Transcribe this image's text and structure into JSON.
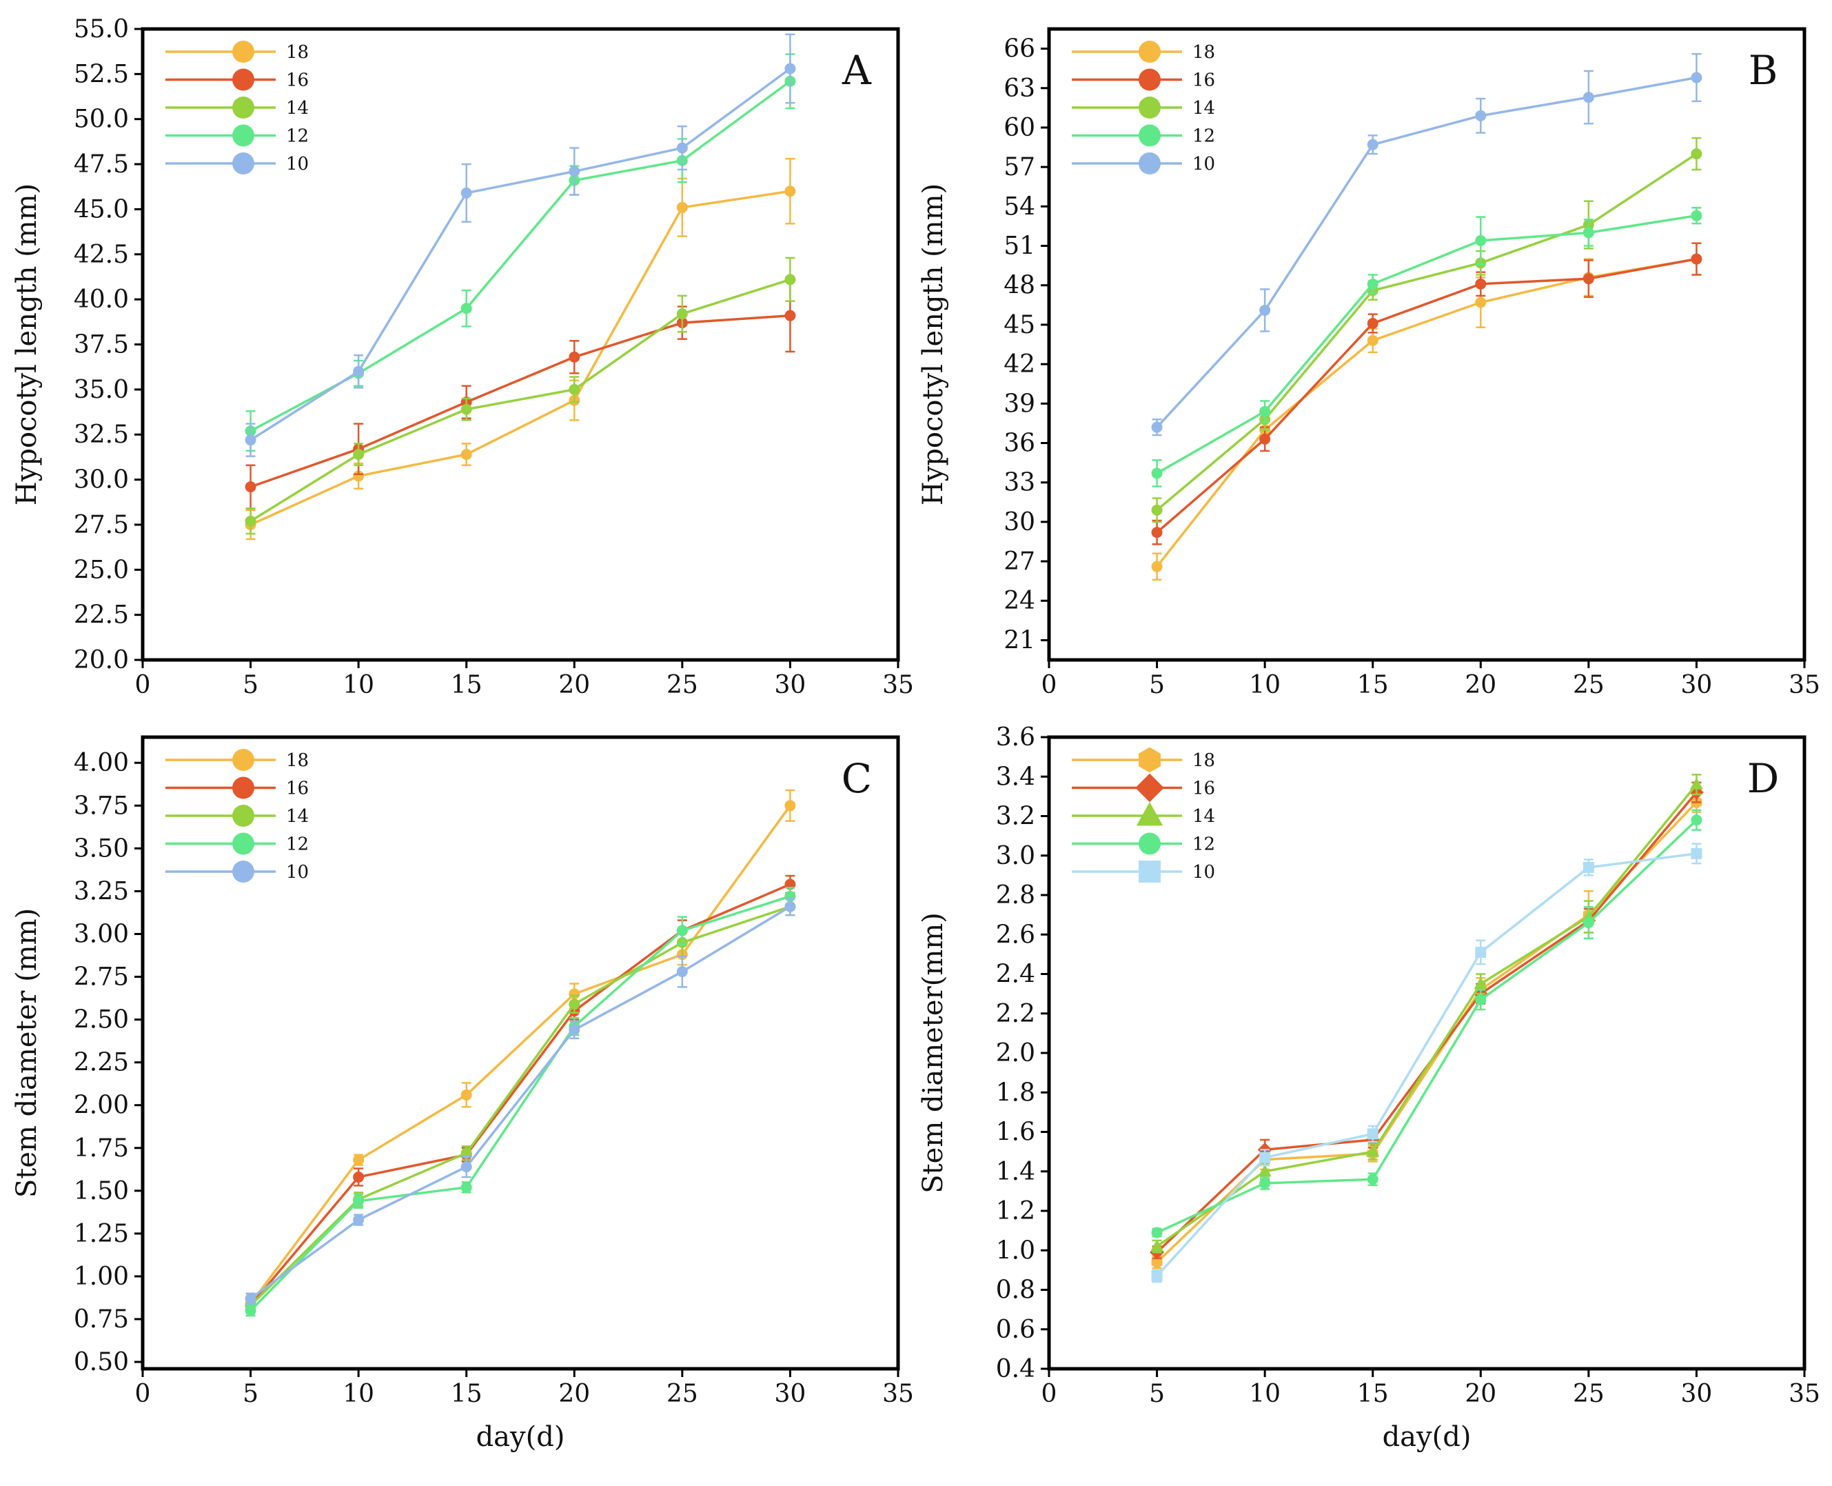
{
  "figure": {
    "xlabel": "day(d)"
  },
  "colors": {
    "18": "#F5B942",
    "16": "#E2572B",
    "14": "#96D13E",
    "12": "#5FE889",
    "10": "#93B7E8",
    "10_d": "#AEDCF5",
    "axis": "#000000"
  },
  "chart_data": [
    {
      "panel": "A",
      "type": "line",
      "title": "",
      "xlabel": "day(d)",
      "ylabel": "Hypocotyl length (mm)",
      "xlim": [
        0,
        35
      ],
      "ylim": [
        20,
        55
      ],
      "xticks": [
        0,
        5,
        10,
        15,
        20,
        25,
        30,
        35
      ],
      "yticks": [
        20.0,
        22.5,
        25.0,
        27.5,
        30.0,
        32.5,
        35.0,
        37.5,
        40.0,
        42.5,
        45.0,
        47.5,
        50.0,
        52.5,
        55.0
      ],
      "ytick_labels": [
        "20.0",
        "22.5",
        "25.0",
        "27.5",
        "30.0",
        "32.5",
        "35.0",
        "37.5",
        "40.0",
        "42.5",
        "45.0",
        "47.5",
        "50.0",
        "52.5",
        "55.0"
      ],
      "xtick_labels": [
        "0",
        "5",
        "10",
        "15",
        "20",
        "25",
        "30",
        "35"
      ],
      "legend_location": "top-left",
      "x": [
        5,
        10,
        15,
        20,
        25,
        30
      ],
      "series": [
        {
          "name": "18",
          "color_key": "18",
          "marker": "circle",
          "values": [
            27.5,
            30.2,
            31.4,
            34.4,
            45.1,
            46.0
          ],
          "errors": [
            0.8,
            0.7,
            0.6,
            1.1,
            1.6,
            1.8
          ]
        },
        {
          "name": "16",
          "color_key": "16",
          "marker": "circle",
          "values": [
            29.6,
            31.7,
            34.3,
            36.8,
            38.7,
            39.1
          ],
          "errors": [
            1.2,
            1.4,
            0.9,
            0.9,
            0.9,
            2.0
          ]
        },
        {
          "name": "14",
          "color_key": "14",
          "marker": "circle",
          "values": [
            27.7,
            31.4,
            33.9,
            35.0,
            39.2,
            41.1
          ],
          "errors": [
            0.7,
            0.6,
            0.6,
            0.7,
            1.0,
            1.2
          ]
        },
        {
          "name": "12",
          "color_key": "12",
          "marker": "circle",
          "values": [
            32.7,
            35.9,
            39.5,
            46.6,
            47.7,
            52.1
          ],
          "errors": [
            1.1,
            0.7,
            1.0,
            0.8,
            1.2,
            1.5
          ]
        },
        {
          "name": "10",
          "color_key": "10",
          "marker": "circle",
          "values": [
            32.2,
            36.0,
            45.9,
            47.1,
            48.4,
            52.8
          ],
          "errors": [
            0.9,
            0.9,
            1.6,
            1.3,
            1.2,
            1.9
          ]
        }
      ]
    },
    {
      "panel": "B",
      "type": "line",
      "title": "",
      "xlabel": "day(d)",
      "ylabel": "Hypocotyl length (mm)",
      "xlim": [
        0,
        35
      ],
      "ylim": [
        19.5,
        67.5
      ],
      "xticks": [
        0,
        5,
        10,
        15,
        20,
        25,
        30,
        35
      ],
      "yticks": [
        21,
        24,
        27,
        30,
        33,
        36,
        39,
        42,
        45,
        48,
        51,
        54,
        57,
        60,
        63,
        66
      ],
      "ytick_labels": [
        "21",
        "24",
        "27",
        "30",
        "33",
        "36",
        "39",
        "42",
        "45",
        "48",
        "51",
        "54",
        "57",
        "60",
        "63",
        "66"
      ],
      "xtick_labels": [
        "0",
        "5",
        "10",
        "15",
        "20",
        "25",
        "30",
        "35"
      ],
      "legend_location": "top-left",
      "x": [
        5,
        10,
        15,
        20,
        25,
        30
      ],
      "series": [
        {
          "name": "18",
          "color_key": "18",
          "marker": "circle",
          "values": [
            26.6,
            37.0,
            43.8,
            46.7,
            48.6,
            50.0
          ],
          "errors": [
            1.0,
            0.9,
            0.9,
            1.9,
            1.4,
            1.2
          ]
        },
        {
          "name": "16",
          "color_key": "16",
          "marker": "circle",
          "values": [
            29.2,
            36.3,
            45.1,
            48.1,
            48.5,
            50.0
          ],
          "errors": [
            0.9,
            0.9,
            0.7,
            0.9,
            1.4,
            1.2
          ]
        },
        {
          "name": "14",
          "color_key": "14",
          "marker": "circle",
          "values": [
            30.9,
            37.8,
            47.6,
            49.7,
            52.6,
            58.0
          ],
          "errors": [
            0.9,
            0.8,
            0.7,
            0.9,
            1.8,
            1.2
          ]
        },
        {
          "name": "12",
          "color_key": "12",
          "marker": "circle",
          "values": [
            33.7,
            38.4,
            48.1,
            51.4,
            52.0,
            53.3
          ],
          "errors": [
            1.0,
            0.8,
            0.7,
            1.8,
            1.0,
            0.6
          ]
        },
        {
          "name": "10",
          "color_key": "10",
          "marker": "circle",
          "values": [
            37.2,
            46.1,
            58.7,
            60.9,
            62.3,
            63.8
          ],
          "errors": [
            0.6,
            1.6,
            0.7,
            1.3,
            2.0,
            1.8
          ]
        }
      ]
    },
    {
      "panel": "C",
      "type": "line",
      "title": "",
      "xlabel": "day(d)",
      "ylabel": "Stem diameter (mm)",
      "xlim": [
        0,
        35
      ],
      "ylim": [
        0.46,
        4.15
      ],
      "xticks": [
        0,
        5,
        10,
        15,
        20,
        25,
        30,
        35
      ],
      "yticks": [
        0.5,
        0.75,
        1.0,
        1.25,
        1.5,
        1.75,
        2.0,
        2.25,
        2.5,
        2.75,
        3.0,
        3.25,
        3.5,
        3.75,
        4.0
      ],
      "ytick_labels": [
        "0.50",
        "0.75",
        "1.00",
        "1.25",
        "1.50",
        "1.75",
        "2.00",
        "2.25",
        "2.50",
        "2.75",
        "3.00",
        "3.25",
        "3.50",
        "3.75",
        "4.00"
      ],
      "xtick_labels": [
        "0",
        "5",
        "10",
        "15",
        "20",
        "25",
        "30",
        "35"
      ],
      "legend_location": "top-left",
      "x": [
        5,
        10,
        15,
        20,
        25,
        30
      ],
      "series": [
        {
          "name": "18",
          "color_key": "18",
          "marker": "circle",
          "values": [
            0.84,
            1.68,
            2.06,
            2.65,
            2.88,
            3.75
          ],
          "errors": [
            0.03,
            0.03,
            0.07,
            0.06,
            0.06,
            0.09
          ]
        },
        {
          "name": "16",
          "color_key": "16",
          "marker": "circle",
          "values": [
            0.83,
            1.58,
            1.71,
            2.55,
            3.02,
            3.29
          ],
          "errors": [
            0.03,
            0.05,
            0.04,
            0.05,
            0.06,
            0.05
          ]
        },
        {
          "name": "14",
          "color_key": "14",
          "marker": "circle",
          "values": [
            0.83,
            1.45,
            1.72,
            2.59,
            2.95,
            3.16
          ],
          "errors": [
            0.03,
            0.04,
            0.04,
            0.05,
            0.08,
            0.05
          ]
        },
        {
          "name": "12",
          "color_key": "12",
          "marker": "circle",
          "values": [
            0.8,
            1.44,
            1.52,
            2.46,
            3.02,
            3.22
          ],
          "errors": [
            0.03,
            0.04,
            0.03,
            0.05,
            0.08,
            0.05
          ]
        },
        {
          "name": "10",
          "color_key": "10",
          "marker": "circle",
          "values": [
            0.87,
            1.33,
            1.64,
            2.44,
            2.78,
            3.16
          ],
          "errors": [
            0.03,
            0.03,
            0.06,
            0.05,
            0.09,
            0.05
          ]
        }
      ]
    },
    {
      "panel": "D",
      "type": "line",
      "title": "",
      "xlabel": "day(d)",
      "ylabel": "Stem diameter(mm)",
      "xlim": [
        0,
        35
      ],
      "ylim": [
        0.4,
        3.6
      ],
      "xticks": [
        0,
        5,
        10,
        15,
        20,
        25,
        30,
        35
      ],
      "yticks": [
        0.4,
        0.6,
        0.8,
        1.0,
        1.2,
        1.4,
        1.6,
        1.8,
        2.0,
        2.2,
        2.4,
        2.6,
        2.8,
        3.0,
        3.2,
        3.4,
        3.6
      ],
      "ytick_labels": [
        "0.4",
        "0.6",
        "0.8",
        "1.0",
        "1.2",
        "1.4",
        "1.6",
        "1.8",
        "2.0",
        "2.2",
        "2.4",
        "2.6",
        "2.8",
        "3.0",
        "3.2",
        "3.4",
        "3.6"
      ],
      "xtick_labels": [
        "0",
        "5",
        "10",
        "15",
        "20",
        "25",
        "30",
        "35"
      ],
      "legend_location": "top-left",
      "x": [
        5,
        10,
        15,
        20,
        25,
        30
      ],
      "series": [
        {
          "name": "18",
          "color_key": "18",
          "marker": "hexagon",
          "values": [
            0.94,
            1.46,
            1.49,
            2.32,
            2.7,
            3.27
          ],
          "errors": [
            0.03,
            0.05,
            0.04,
            0.06,
            0.12,
            0.05
          ]
        },
        {
          "name": "16",
          "color_key": "16",
          "marker": "diamond",
          "values": [
            0.99,
            1.51,
            1.56,
            2.3,
            2.67,
            3.32
          ],
          "errors": [
            0.03,
            0.05,
            0.04,
            0.05,
            0.06,
            0.05
          ]
        },
        {
          "name": "14",
          "color_key": "14",
          "marker": "triangle",
          "values": [
            1.02,
            1.4,
            1.5,
            2.35,
            2.69,
            3.36
          ],
          "errors": [
            0.03,
            0.04,
            0.04,
            0.05,
            0.08,
            0.05
          ]
        },
        {
          "name": "12",
          "color_key": "12",
          "marker": "circle",
          "values": [
            1.09,
            1.34,
            1.36,
            2.27,
            2.66,
            3.18
          ],
          "errors": [
            0.02,
            0.03,
            0.03,
            0.05,
            0.08,
            0.05
          ]
        },
        {
          "name": "10",
          "color_key": "10_d",
          "marker": "square",
          "values": [
            0.87,
            1.47,
            1.59,
            2.51,
            2.94,
            3.01
          ],
          "errors": [
            0.03,
            0.04,
            0.04,
            0.06,
            0.04,
            0.05
          ]
        }
      ]
    }
  ]
}
